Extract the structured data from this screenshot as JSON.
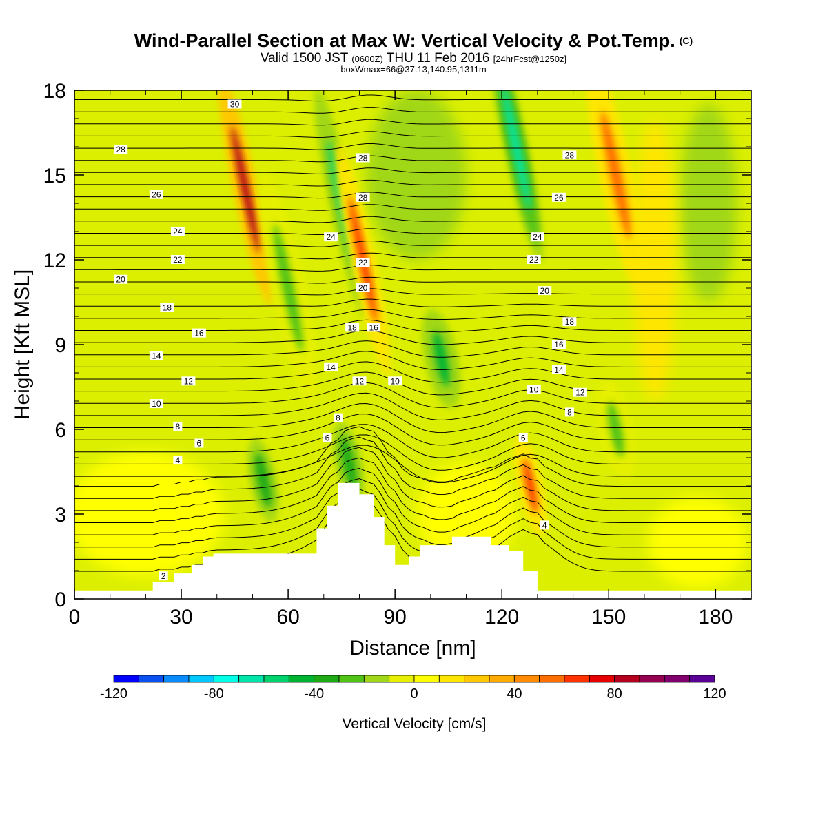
{
  "header": {
    "title": "Wind-Parallel Section at Max W: Vertical Velocity & Pot.Temp.",
    "copyright": "(C)",
    "valid_prefix": "Valid 1500 JST",
    "valid_utc": "(0600Z)",
    "valid_date": "THU 11 Feb 2016",
    "forecast": "[24hrFcst@1250z]",
    "box_info": "boxWmax=66@37.13,140.95,1311m"
  },
  "chart_data": {
    "type": "heatmap",
    "title": "Wind-Parallel Section at Max W: Vertical Velocity & Pot.Temp.",
    "xlabel": "Distance [nm]",
    "ylabel": "Height [Kft MSL]",
    "xlim": [
      0,
      190
    ],
    "ylim": [
      0,
      18
    ],
    "x_ticks": [
      0,
      30,
      60,
      90,
      120,
      150,
      180
    ],
    "y_ticks": [
      0,
      3,
      6,
      9,
      12,
      15,
      18
    ],
    "colorbar": {
      "label": "Vertical Velocity [cm/s]",
      "range": [
        -120,
        120
      ],
      "tick_labels": [
        "-120",
        "-80",
        "-40",
        "0",
        "40",
        "80",
        "120"
      ],
      "colors": [
        "#0000ff",
        "#0a50f0",
        "#0a8cff",
        "#00c8ff",
        "#00ffe6",
        "#00e6aa",
        "#00d26e",
        "#00b432",
        "#1eaa14",
        "#50c314",
        "#a0d719",
        "#e6f000",
        "#ffff00",
        "#ffe600",
        "#ffc800",
        "#ffaa00",
        "#ff8c00",
        "#ff6e00",
        "#ff3200",
        "#e60000",
        "#b4001e",
        "#960050",
        "#82006e",
        "#5a0096"
      ]
    },
    "terrain_profile": {
      "x": [
        0,
        22,
        22,
        26,
        26,
        28,
        28,
        33,
        33,
        36,
        36,
        39,
        39,
        68,
        68,
        71,
        71,
        74,
        74,
        80,
        80,
        84,
        84,
        87,
        87,
        90,
        90,
        94,
        94,
        97,
        97,
        100,
        100,
        106,
        106,
        117,
        117,
        122,
        122,
        126,
        126,
        130,
        130,
        190
      ],
      "y": [
        0.3,
        0.3,
        0.6,
        0.6,
        0.6,
        0.6,
        0.9,
        0.9,
        1.2,
        1.2,
        1.5,
        1.5,
        1.6,
        1.6,
        2.5,
        2.5,
        3.3,
        3.3,
        4.1,
        4.1,
        3.7,
        3.7,
        2.9,
        2.9,
        1.9,
        1.9,
        1.2,
        1.2,
        1.5,
        1.5,
        1.9,
        1.9,
        1.9,
        1.9,
        2.2,
        2.2,
        1.9,
        1.9,
        1.7,
        1.7,
        1.0,
        1.0,
        0.3,
        0.3
      ]
    },
    "velocity_features": [
      {
        "x": 48,
        "y": 14.5,
        "w": 80,
        "label": "updraft"
      },
      {
        "x": 53,
        "y": 4.2,
        "w": -40,
        "label": "downdraft"
      },
      {
        "x": 60,
        "y": 11,
        "w": -30,
        "label": "downdraft"
      },
      {
        "x": 75,
        "y": 14,
        "w": -60,
        "label": "downdraft"
      },
      {
        "x": 81,
        "y": 12,
        "w": 60,
        "label": "updraft"
      },
      {
        "x": 77,
        "y": 4.8,
        "w": -40,
        "label": "downdraft"
      },
      {
        "x": 103,
        "y": 8.5,
        "w": -45,
        "label": "downdraft"
      },
      {
        "x": 124,
        "y": 16,
        "w": -70,
        "label": "downdraft"
      },
      {
        "x": 128,
        "y": 4,
        "w": 66,
        "label": "updraft"
      },
      {
        "x": 152,
        "y": 15,
        "w": 50,
        "label": "updraft"
      },
      {
        "x": 152,
        "y": 6,
        "w": -30,
        "label": "downdraft"
      }
    ],
    "isentrope_labels": [
      {
        "text": "30",
        "x": 45,
        "y": 17.5
      },
      {
        "text": "28",
        "x": 13,
        "y": 15.9
      },
      {
        "text": "28",
        "x": 81,
        "y": 15.6
      },
      {
        "text": "28",
        "x": 81,
        "y": 14.2
      },
      {
        "text": "28",
        "x": 139,
        "y": 15.7
      },
      {
        "text": "26",
        "x": 23,
        "y": 14.3
      },
      {
        "text": "26",
        "x": 136,
        "y": 14.2
      },
      {
        "text": "24",
        "x": 29,
        "y": 13.0
      },
      {
        "text": "24",
        "x": 72,
        "y": 12.8
      },
      {
        "text": "24",
        "x": 130,
        "y": 12.8
      },
      {
        "text": "22",
        "x": 29,
        "y": 12.0
      },
      {
        "text": "22",
        "x": 81,
        "y": 11.9
      },
      {
        "text": "22",
        "x": 129,
        "y": 12.0
      },
      {
        "text": "20",
        "x": 13,
        "y": 11.3
      },
      {
        "text": "20",
        "x": 81,
        "y": 11.0
      },
      {
        "text": "20",
        "x": 132,
        "y": 10.9
      },
      {
        "text": "18",
        "x": 26,
        "y": 10.3
      },
      {
        "text": "18",
        "x": 78,
        "y": 9.6
      },
      {
        "text": "18",
        "x": 139,
        "y": 9.8
      },
      {
        "text": "16",
        "x": 35,
        "y": 9.4
      },
      {
        "text": "16",
        "x": 84,
        "y": 9.6
      },
      {
        "text": "16",
        "x": 136,
        "y": 9.0
      },
      {
        "text": "14",
        "x": 23,
        "y": 8.6
      },
      {
        "text": "14",
        "x": 72,
        "y": 8.2
      },
      {
        "text": "14",
        "x": 136,
        "y": 8.1
      },
      {
        "text": "12",
        "x": 32,
        "y": 7.7
      },
      {
        "text": "12",
        "x": 80,
        "y": 7.7
      },
      {
        "text": "12",
        "x": 142,
        "y": 7.3
      },
      {
        "text": "10",
        "x": 23,
        "y": 6.9
      },
      {
        "text": "10",
        "x": 90,
        "y": 7.7
      },
      {
        "text": "10",
        "x": 129,
        "y": 7.4
      },
      {
        "text": "8",
        "x": 29,
        "y": 6.1
      },
      {
        "text": "8",
        "x": 74,
        "y": 6.4
      },
      {
        "text": "8",
        "x": 139,
        "y": 6.6
      },
      {
        "text": "6",
        "x": 35,
        "y": 5.5
      },
      {
        "text": "6",
        "x": 71,
        "y": 5.7
      },
      {
        "text": "6",
        "x": 126,
        "y": 5.7
      },
      {
        "text": "4",
        "x": 29,
        "y": 4.9
      },
      {
        "text": "4",
        "x": 132,
        "y": 2.6
      },
      {
        "text": "2",
        "x": 25,
        "y": 0.8
      }
    ]
  }
}
